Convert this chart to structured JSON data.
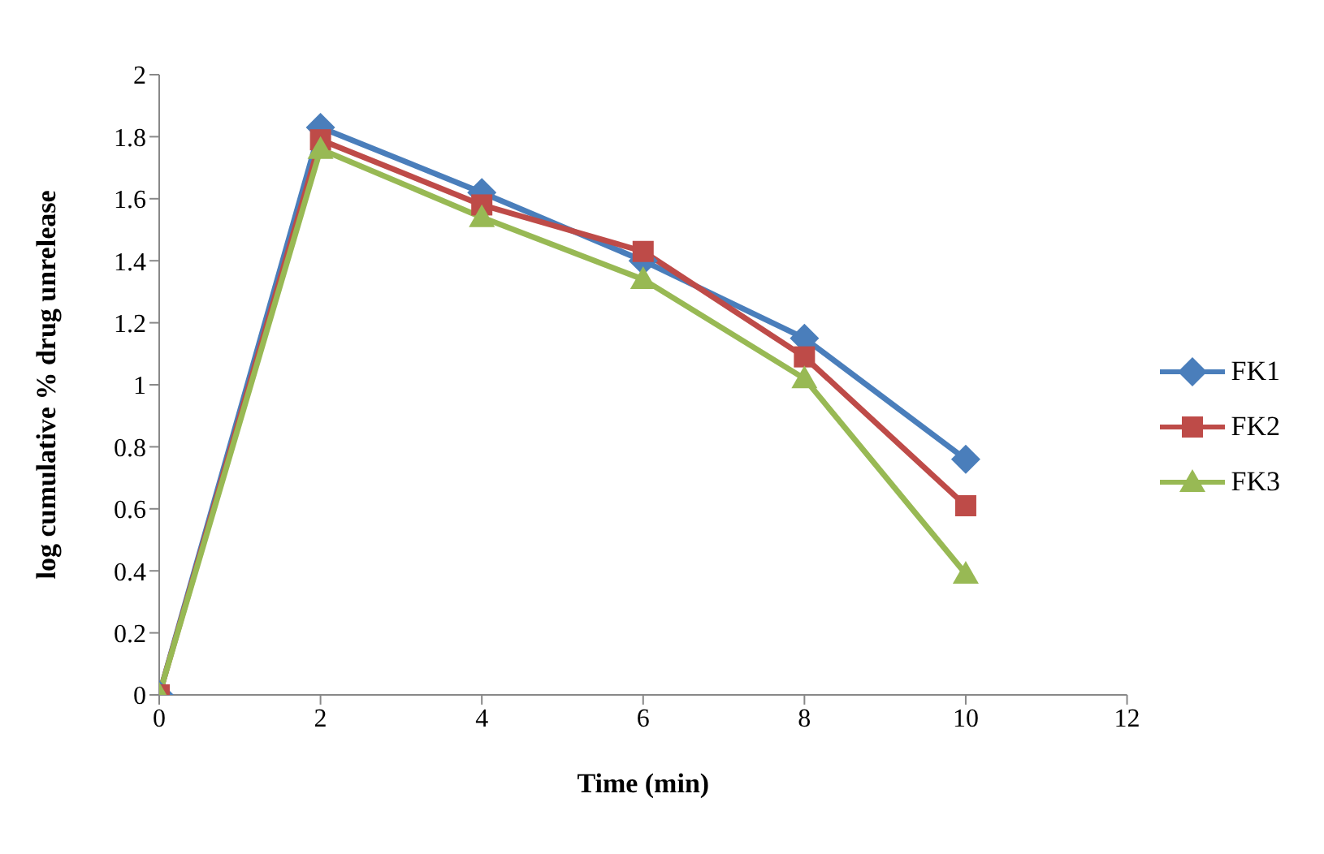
{
  "chart_data": {
    "type": "line",
    "xlabel": "Time (min)",
    "ylabel": "log cumulative % drug unrelease",
    "x": [
      0,
      2,
      4,
      6,
      8,
      10
    ],
    "series": [
      {
        "name": "FK1",
        "color": "#4a7ebb",
        "marker": "diamond",
        "values": [
          0,
          1.83,
          1.62,
          1.4,
          1.15,
          0.76
        ]
      },
      {
        "name": "FK2",
        "color": "#be4b48",
        "marker": "square",
        "values": [
          0,
          1.79,
          1.58,
          1.43,
          1.09,
          0.61
        ]
      },
      {
        "name": "FK3",
        "color": "#98b954",
        "marker": "triangle",
        "values": [
          0,
          1.76,
          1.54,
          1.34,
          1.02,
          0.39
        ]
      }
    ],
    "xlim": [
      0,
      12
    ],
    "xticks": [
      0,
      2,
      4,
      6,
      8,
      10,
      12
    ],
    "ylim": [
      0,
      2
    ],
    "yticks": [
      0,
      0.2,
      0.4,
      0.6,
      0.8,
      1,
      1.2,
      1.4,
      1.6,
      1.8,
      2
    ],
    "grid": false,
    "legend": "right",
    "line_style": "solid"
  }
}
